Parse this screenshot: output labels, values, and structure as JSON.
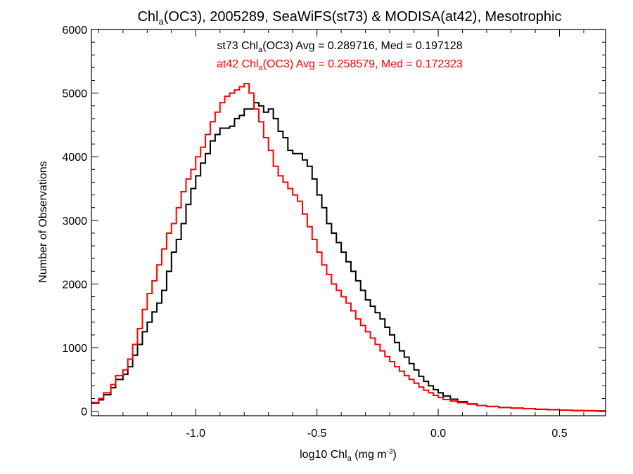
{
  "chart_data": {
    "type": "line",
    "step": true,
    "title": {
      "prefix": "Chl",
      "sub": "a",
      "suffix": "(OC3), 2005289, SeaWiFS(st73) & MODISA(at42), Mesotrophic"
    },
    "xlabel": {
      "prefix": "log10 Chl",
      "sub": "a",
      "mid": " (mg m",
      "sup": "-3",
      "suffix": ")"
    },
    "ylabel": "Number of Observations",
    "xlim": [
      -1.43,
      0.69
    ],
    "ylim": [
      -70,
      6000
    ],
    "x_ticks": [
      -1.0,
      -0.5,
      0.0,
      0.5
    ],
    "x_tick_labels": [
      "-1.0",
      "-0.5",
      "0.0",
      "0.5"
    ],
    "y_ticks": [
      0,
      1000,
      2000,
      3000,
      4000,
      5000,
      6000
    ],
    "y_tick_labels": [
      "0",
      "1000",
      "2000",
      "3000",
      "4000",
      "5000",
      "6000"
    ],
    "grid": false,
    "annotations": [
      {
        "id": "st73",
        "prefix": "st73 Chl",
        "sub": "a",
        "suffix": "(OC3) Avg = 0.289716, Med = 0.197128",
        "color": "#000000"
      },
      {
        "id": "at42",
        "prefix": "at42 Chl",
        "sub": "a",
        "suffix": "(OC3) Avg = 0.258579, Med = 0.172323",
        "color": "#ff0000"
      }
    ],
    "series": [
      {
        "id": "st73",
        "color": "#000000",
        "points": [
          [
            -1.43,
            130
          ],
          [
            -1.4,
            180
          ],
          [
            -1.38,
            260
          ],
          [
            -1.35,
            370
          ],
          [
            -1.33,
            500
          ],
          [
            -1.3,
            580
          ],
          [
            -1.28,
            700
          ],
          [
            -1.26,
            880
          ],
          [
            -1.24,
            1050
          ],
          [
            -1.22,
            1250
          ],
          [
            -1.2,
            1400
          ],
          [
            -1.18,
            1560
          ],
          [
            -1.16,
            1700
          ],
          [
            -1.14,
            1900
          ],
          [
            -1.12,
            2200
          ],
          [
            -1.1,
            2500
          ],
          [
            -1.08,
            2700
          ],
          [
            -1.06,
            2950
          ],
          [
            -1.04,
            3250
          ],
          [
            -1.02,
            3500
          ],
          [
            -1.0,
            3700
          ],
          [
            -0.98,
            3900
          ],
          [
            -0.96,
            4050
          ],
          [
            -0.94,
            4250
          ],
          [
            -0.92,
            4350
          ],
          [
            -0.9,
            4450
          ],
          [
            -0.88,
            4450
          ],
          [
            -0.86,
            4480
          ],
          [
            -0.84,
            4600
          ],
          [
            -0.82,
            4650
          ],
          [
            -0.8,
            4750
          ],
          [
            -0.78,
            4750
          ],
          [
            -0.76,
            4850
          ],
          [
            -0.74,
            4800
          ],
          [
            -0.72,
            4700
          ],
          [
            -0.7,
            4750
          ],
          [
            -0.68,
            4600
          ],
          [
            -0.66,
            4400
          ],
          [
            -0.64,
            4300
          ],
          [
            -0.62,
            4100
          ],
          [
            -0.6,
            4050
          ],
          [
            -0.58,
            4050
          ],
          [
            -0.56,
            3950
          ],
          [
            -0.54,
            3850
          ],
          [
            -0.52,
            3650
          ],
          [
            -0.5,
            3400
          ],
          [
            -0.48,
            3200
          ],
          [
            -0.46,
            2950
          ],
          [
            -0.44,
            2800
          ],
          [
            -0.42,
            2650
          ],
          [
            -0.4,
            2500
          ],
          [
            -0.38,
            2350
          ],
          [
            -0.36,
            2200
          ],
          [
            -0.34,
            2050
          ],
          [
            -0.32,
            1900
          ],
          [
            -0.3,
            1750
          ],
          [
            -0.28,
            1650
          ],
          [
            -0.26,
            1550
          ],
          [
            -0.24,
            1450
          ],
          [
            -0.22,
            1320
          ],
          [
            -0.2,
            1200
          ],
          [
            -0.18,
            1080
          ],
          [
            -0.16,
            950
          ],
          [
            -0.14,
            850
          ],
          [
            -0.12,
            750
          ],
          [
            -0.1,
            650
          ],
          [
            -0.08,
            550
          ],
          [
            -0.06,
            470
          ],
          [
            -0.04,
            400
          ],
          [
            -0.02,
            340
          ],
          [
            0.0,
            290
          ],
          [
            0.02,
            240
          ],
          [
            0.05,
            190
          ],
          [
            0.08,
            150
          ],
          [
            0.12,
            115
          ],
          [
            0.16,
            90
          ],
          [
            0.2,
            75
          ],
          [
            0.25,
            60
          ],
          [
            0.3,
            50
          ],
          [
            0.35,
            40
          ],
          [
            0.4,
            30
          ],
          [
            0.45,
            25
          ],
          [
            0.5,
            18
          ],
          [
            0.55,
            12
          ],
          [
            0.6,
            8
          ],
          [
            0.65,
            4
          ],
          [
            0.69,
            2
          ]
        ]
      },
      {
        "id": "at42",
        "color": "#ff0000",
        "points": [
          [
            -1.43,
            140
          ],
          [
            -1.4,
            200
          ],
          [
            -1.38,
            290
          ],
          [
            -1.35,
            420
          ],
          [
            -1.33,
            560
          ],
          [
            -1.3,
            650
          ],
          [
            -1.28,
            820
          ],
          [
            -1.26,
            1050
          ],
          [
            -1.24,
            1300
          ],
          [
            -1.22,
            1600
          ],
          [
            -1.2,
            1850
          ],
          [
            -1.18,
            2050
          ],
          [
            -1.16,
            2300
          ],
          [
            -1.14,
            2550
          ],
          [
            -1.12,
            2800
          ],
          [
            -1.1,
            2950
          ],
          [
            -1.08,
            3200
          ],
          [
            -1.06,
            3450
          ],
          [
            -1.04,
            3650
          ],
          [
            -1.02,
            3800
          ],
          [
            -1.0,
            4000
          ],
          [
            -0.98,
            4150
          ],
          [
            -0.96,
            4350
          ],
          [
            -0.94,
            4550
          ],
          [
            -0.92,
            4700
          ],
          [
            -0.9,
            4850
          ],
          [
            -0.88,
            4950
          ],
          [
            -0.86,
            5000
          ],
          [
            -0.84,
            5050
          ],
          [
            -0.82,
            5100
          ],
          [
            -0.8,
            5150
          ],
          [
            -0.78,
            5000
          ],
          [
            -0.76,
            4750
          ],
          [
            -0.74,
            4550
          ],
          [
            -0.72,
            4300
          ],
          [
            -0.7,
            4100
          ],
          [
            -0.68,
            3850
          ],
          [
            -0.66,
            3700
          ],
          [
            -0.64,
            3600
          ],
          [
            -0.62,
            3500
          ],
          [
            -0.6,
            3400
          ],
          [
            -0.58,
            3300
          ],
          [
            -0.56,
            3100
          ],
          [
            -0.54,
            2900
          ],
          [
            -0.52,
            2700
          ],
          [
            -0.5,
            2500
          ],
          [
            -0.48,
            2300
          ],
          [
            -0.46,
            2150
          ],
          [
            -0.44,
            2000
          ],
          [
            -0.42,
            1900
          ],
          [
            -0.4,
            1800
          ],
          [
            -0.38,
            1700
          ],
          [
            -0.36,
            1580
          ],
          [
            -0.34,
            1450
          ],
          [
            -0.32,
            1350
          ],
          [
            -0.3,
            1250
          ],
          [
            -0.28,
            1150
          ],
          [
            -0.26,
            1050
          ],
          [
            -0.24,
            950
          ],
          [
            -0.22,
            860
          ],
          [
            -0.2,
            780
          ],
          [
            -0.18,
            700
          ],
          [
            -0.16,
            630
          ],
          [
            -0.14,
            560
          ],
          [
            -0.12,
            500
          ],
          [
            -0.1,
            440
          ],
          [
            -0.08,
            380
          ],
          [
            -0.06,
            330
          ],
          [
            -0.04,
            290
          ],
          [
            -0.02,
            250
          ],
          [
            0.0,
            215
          ],
          [
            0.02,
            185
          ],
          [
            0.05,
            160
          ],
          [
            0.08,
            135
          ],
          [
            0.12,
            110
          ],
          [
            0.16,
            90
          ],
          [
            0.2,
            75
          ],
          [
            0.25,
            60
          ],
          [
            0.3,
            50
          ],
          [
            0.35,
            40
          ],
          [
            0.4,
            32
          ],
          [
            0.45,
            25
          ],
          [
            0.5,
            18
          ],
          [
            0.55,
            12
          ],
          [
            0.6,
            8
          ],
          [
            0.65,
            4
          ],
          [
            0.69,
            2
          ]
        ]
      }
    ]
  }
}
